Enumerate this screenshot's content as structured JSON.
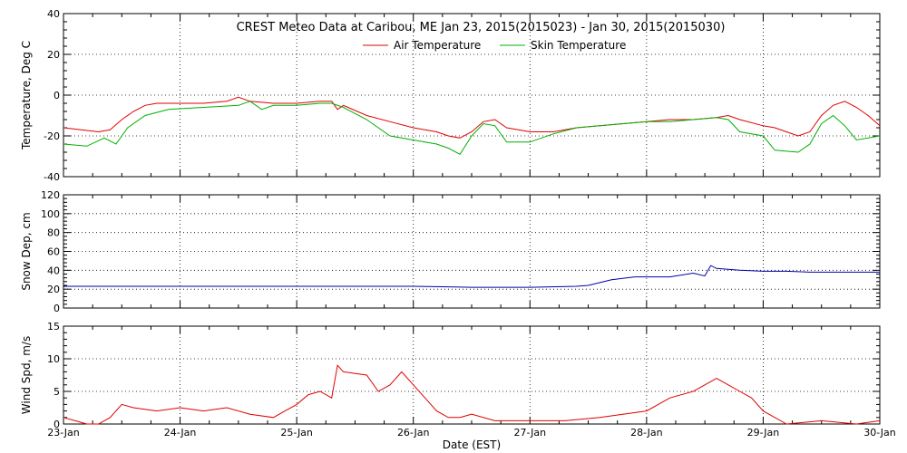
{
  "title": "CREST Meteo Data at Caribou, ME   Jan 23, 2015(2015023) - Jan 30, 2015(2015030)",
  "xlabel": "Date (EST)",
  "x_ticks": [
    "23-Jan",
    "24-Jan",
    "25-Jan",
    "26-Jan",
    "27-Jan",
    "28-Jan",
    "29-Jan",
    "30-Jan"
  ],
  "colors": {
    "air": "#e00000",
    "skin": "#00b000",
    "snow": "#0000aa",
    "wind": "#e00000"
  },
  "chart_data": [
    {
      "type": "line",
      "ylabel": "Temperature, Deg C",
      "ylim": [
        -40,
        40
      ],
      "yticks": [
        -40,
        -20,
        0,
        20,
        40
      ],
      "grid": true,
      "legend": "top-center",
      "series": [
        {
          "name": "Air Temperature",
          "x": [
            0,
            0.15,
            0.3,
            0.4,
            0.5,
            0.6,
            0.7,
            0.8,
            1.0,
            1.2,
            1.4,
            1.5,
            1.6,
            1.8,
            2.0,
            2.2,
            2.3,
            2.35,
            2.4,
            2.6,
            2.8,
            3.0,
            3.2,
            3.3,
            3.4,
            3.5,
            3.6,
            3.7,
            3.8,
            4.0,
            4.2,
            4.4,
            4.6,
            4.8,
            5.0,
            5.2,
            5.4,
            5.6,
            5.7,
            5.8,
            6.0,
            6.1,
            6.2,
            6.3,
            6.4,
            6.5,
            6.6,
            6.7,
            6.8,
            6.9,
            7.0
          ],
          "y": [
            -16,
            -17,
            -18,
            -17,
            -12,
            -8,
            -5,
            -4,
            -4,
            -4,
            -3,
            -1,
            -3,
            -4,
            -4,
            -3,
            -3,
            -7,
            -5,
            -10,
            -13,
            -16,
            -18,
            -20,
            -21,
            -18,
            -13,
            -12,
            -16,
            -18,
            -18,
            -16,
            -15,
            -14,
            -13,
            -12,
            -12,
            -11,
            -10,
            -12,
            -15,
            -16,
            -18,
            -20,
            -18,
            -10,
            -5,
            -3,
            -6,
            -10,
            -15
          ]
        },
        {
          "name": "Skin Temperature",
          "x": [
            0,
            0.2,
            0.35,
            0.45,
            0.55,
            0.7,
            0.9,
            1.2,
            1.5,
            1.6,
            1.7,
            1.8,
            2.0,
            2.2,
            2.3,
            2.4,
            2.6,
            2.8,
            3.0,
            3.2,
            3.3,
            3.4,
            3.5,
            3.6,
            3.7,
            3.8,
            4.0,
            4.2,
            4.4,
            4.6,
            4.8,
            5.0,
            5.2,
            5.4,
            5.6,
            5.7,
            5.8,
            6.0,
            6.1,
            6.3,
            6.4,
            6.5,
            6.6,
            6.7,
            6.8,
            7.0
          ],
          "y": [
            -24,
            -25,
            -21,
            -24,
            -16,
            -10,
            -7,
            -6,
            -5,
            -3,
            -7,
            -5,
            -5,
            -4,
            -4,
            -6,
            -12,
            -20,
            -22,
            -24,
            -26,
            -29,
            -20,
            -14,
            -15,
            -23,
            -23,
            -19,
            -16,
            -15,
            -14,
            -13,
            -13,
            -12,
            -11,
            -12,
            -18,
            -20,
            -27,
            -28,
            -24,
            -14,
            -10,
            -15,
            -22,
            -20
          ]
        }
      ]
    },
    {
      "type": "line",
      "ylabel": "Snow Dep, cm",
      "ylim": [
        0,
        120
      ],
      "yticks": [
        0,
        20,
        40,
        60,
        80,
        100,
        120
      ],
      "grid": true,
      "series": [
        {
          "name": "",
          "x": [
            0,
            1,
            2,
            3,
            3.5,
            4,
            4.4,
            4.5,
            4.7,
            4.9,
            5.0,
            5.2,
            5.4,
            5.5,
            5.55,
            5.6,
            5.8,
            6.0,
            6.2,
            6.4,
            6.6,
            6.8,
            7.0
          ],
          "y": [
            23,
            23,
            23,
            23,
            22,
            22,
            23,
            24,
            30,
            33,
            33,
            33,
            37,
            34,
            45,
            42,
            40,
            39,
            39,
            38,
            38,
            38,
            38
          ]
        }
      ]
    },
    {
      "type": "line",
      "ylabel": "Wind Spd, m/s",
      "ylim": [
        0,
        15
      ],
      "yticks": [
        0,
        5,
        10,
        15
      ],
      "grid": true,
      "series": [
        {
          "name": "",
          "x": [
            0,
            0.1,
            0.2,
            0.3,
            0.4,
            0.5,
            0.6,
            0.8,
            1.0,
            1.2,
            1.4,
            1.6,
            1.8,
            1.9,
            2.0,
            2.1,
            2.2,
            2.3,
            2.35,
            2.4,
            2.6,
            2.7,
            2.8,
            2.9,
            3.0,
            3.1,
            3.2,
            3.3,
            3.4,
            3.5,
            3.7,
            4.0,
            4.3,
            4.6,
            5.0,
            5.2,
            5.4,
            5.5,
            5.6,
            5.7,
            5.8,
            5.9,
            6.0,
            6.2,
            6.5,
            6.8,
            7.0
          ],
          "y": [
            1,
            0.5,
            0,
            0,
            1,
            3,
            2.5,
            2,
            2.5,
            2,
            2.5,
            1.5,
            1,
            2,
            3,
            4.5,
            5,
            4,
            9,
            8,
            7.5,
            5,
            6,
            8,
            6,
            4,
            2,
            1,
            1,
            1.5,
            0.5,
            0.5,
            0.5,
            1,
            2,
            4,
            5,
            6,
            7,
            6,
            5,
            4,
            2,
            0,
            0.5,
            0,
            0.5
          ]
        }
      ]
    }
  ]
}
